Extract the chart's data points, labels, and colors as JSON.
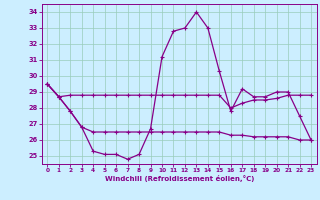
{
  "xlabel": "Windchill (Refroidissement éolien,°C)",
  "background_color": "#cceeff",
  "grid_color": "#99ccbb",
  "line_color": "#880088",
  "x": [
    0,
    1,
    2,
    3,
    4,
    5,
    6,
    7,
    8,
    9,
    10,
    11,
    12,
    13,
    14,
    15,
    16,
    17,
    18,
    19,
    20,
    21,
    22,
    23
  ],
  "line_main": [
    29.5,
    28.7,
    27.8,
    26.8,
    25.3,
    25.1,
    25.1,
    24.8,
    25.1,
    26.7,
    31.2,
    32.8,
    33.0,
    34.0,
    33.0,
    30.3,
    27.8,
    29.2,
    28.7,
    28.7,
    29.0,
    29.0,
    27.5,
    26.0
  ],
  "line_upper": [
    29.5,
    28.7,
    28.8,
    28.8,
    28.8,
    28.8,
    28.8,
    28.8,
    28.8,
    28.8,
    28.8,
    28.8,
    28.8,
    28.8,
    28.8,
    28.8,
    28.0,
    28.3,
    28.5,
    28.5,
    28.6,
    28.8,
    28.8,
    28.8
  ],
  "line_lower": [
    29.5,
    28.7,
    27.8,
    26.8,
    26.5,
    26.5,
    26.5,
    26.5,
    26.5,
    26.5,
    26.5,
    26.5,
    26.5,
    26.5,
    26.5,
    26.5,
    26.3,
    26.3,
    26.2,
    26.2,
    26.2,
    26.2,
    26.0,
    26.0
  ],
  "ylim": [
    24.5,
    34.5
  ],
  "yticks": [
    25,
    26,
    27,
    28,
    29,
    30,
    31,
    32,
    33,
    34
  ],
  "xticks": [
    0,
    1,
    2,
    3,
    4,
    5,
    6,
    7,
    8,
    9,
    10,
    11,
    12,
    13,
    14,
    15,
    16,
    17,
    18,
    19,
    20,
    21,
    22,
    23
  ]
}
